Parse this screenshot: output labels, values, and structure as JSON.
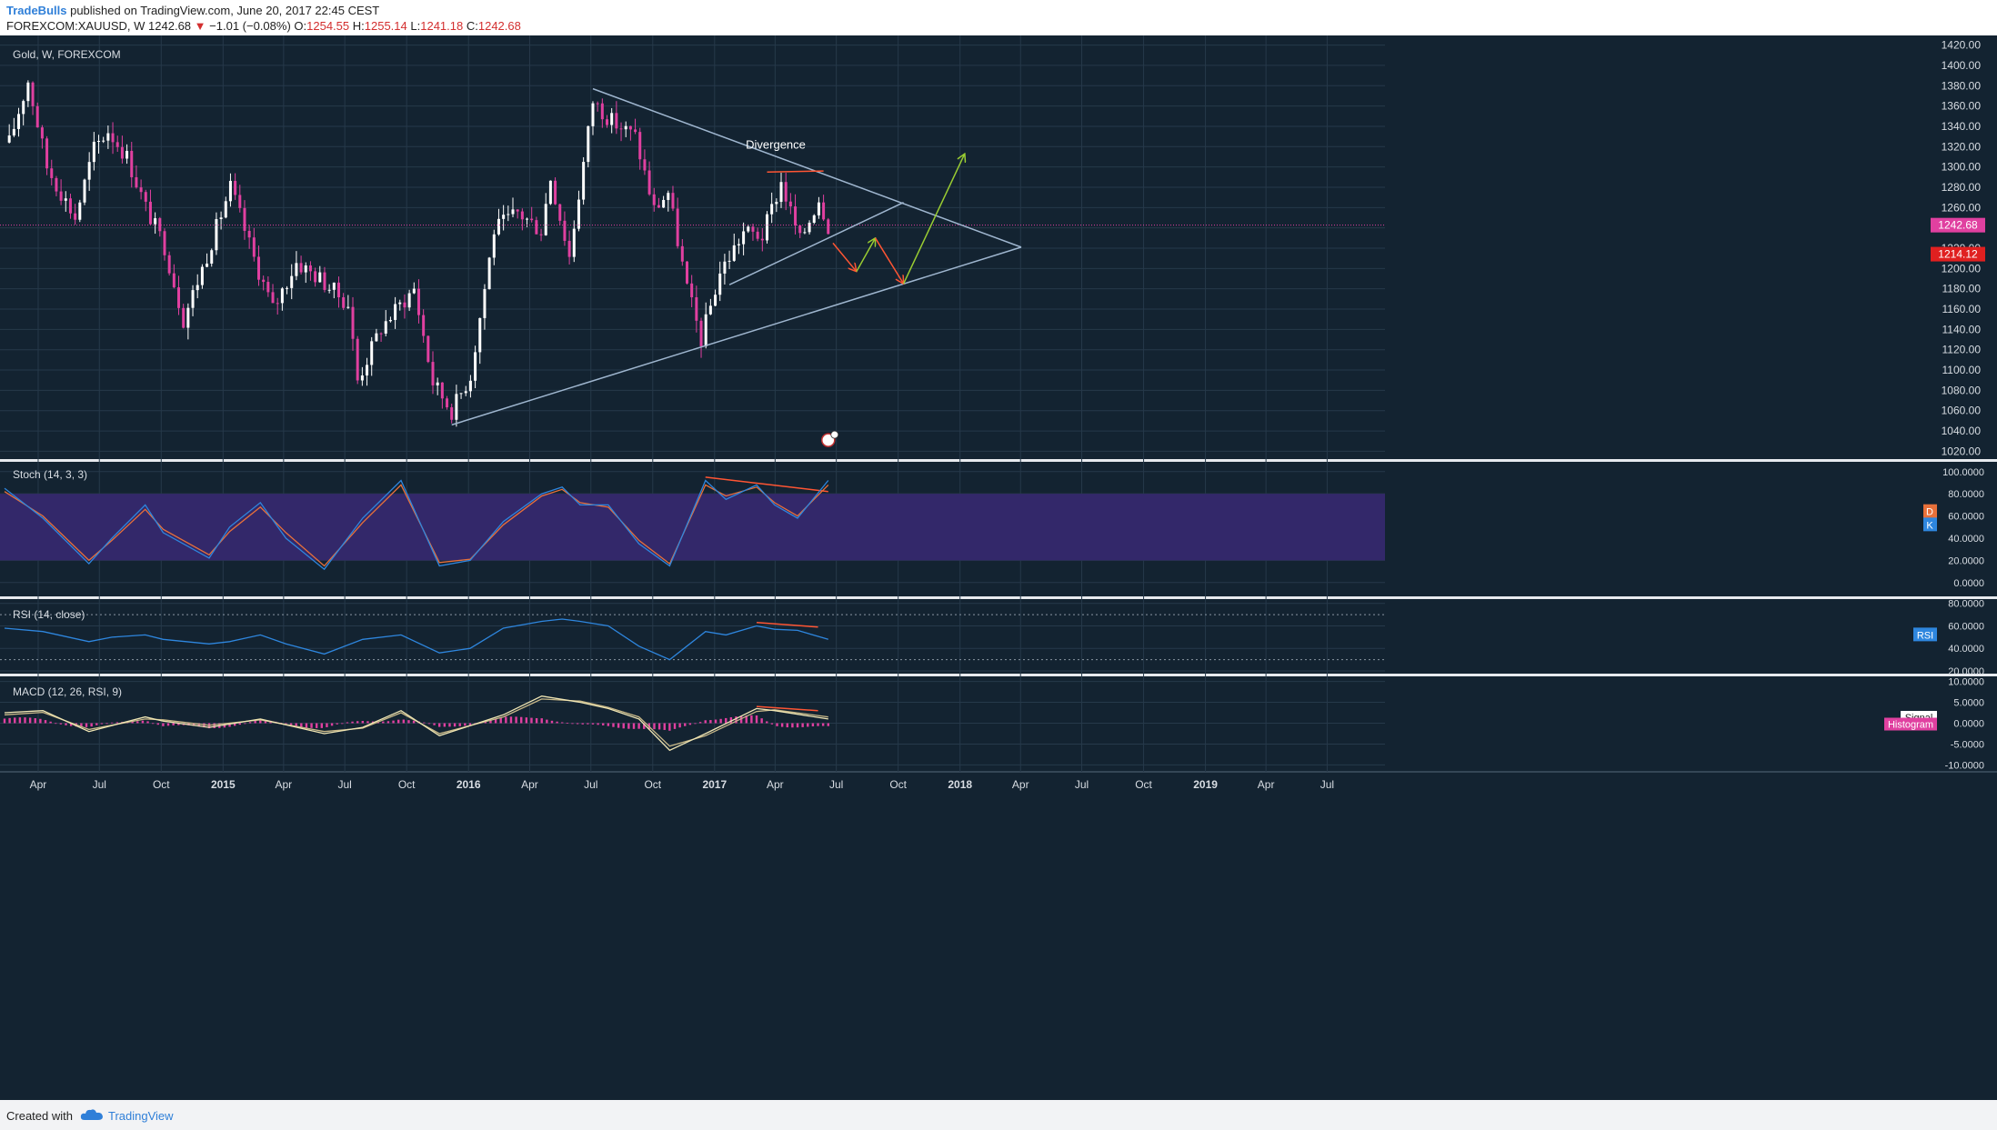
{
  "header": {
    "author": "TradeBulls",
    "published": "published on TradingView.com, June 20, 2017 22:45 CEST",
    "symbol": "FOREXCOM:XAUUSD, W",
    "last": "1242.68",
    "arrow": "▼",
    "change": "−1.01 (−0.08%)",
    "o_label": "O:",
    "o_value": "1254.55",
    "h_label": "H:",
    "h_value": "1255.14",
    "l_label": "L:",
    "l_value": "1241.18",
    "c_label": "C:",
    "c_value": "1242.68"
  },
  "footer": {
    "created": "Created with",
    "brand": "TradingView",
    "logo_icon": "tradingview-cloud-icon"
  },
  "colors": {
    "background": "#132331",
    "grid": "#26394a",
    "up": "#ffffff",
    "down": "#e040a0",
    "trend": "#9fb6cf",
    "annotation_red": "#ff5533",
    "annotation_green": "#9acd32",
    "stoch_k": "#2e86de",
    "stoch_d": "#e8703a",
    "stoch_band": "#33286a",
    "rsi": "#2e86de",
    "macd_line": "#f0e6b4",
    "macd_hist": "#e040a0",
    "price_tag": "#e040a0",
    "level_tag": "#e02020"
  },
  "chart_data": [
    {
      "type": "candlestick",
      "title": "Gold, W, FOREXCOM",
      "timeframe": "W",
      "y_ticks": [
        "1020.00",
        "1040.00",
        "1060.00",
        "1080.00",
        "1100.00",
        "1120.00",
        "1140.00",
        "1160.00",
        "1180.00",
        "1200.00",
        "1220.00",
        "1240.00",
        "1260.00",
        "1280.00",
        "1300.00",
        "1320.00",
        "1340.00",
        "1360.00",
        "1380.00",
        "1400.00",
        "1420.00"
      ],
      "ylim": [
        1015,
        1425
      ],
      "x_ticks": [
        "Apr",
        "Jul",
        "Oct",
        "2015",
        "Apr",
        "Jul",
        "Oct",
        "2016",
        "Apr",
        "Jul",
        "Oct",
        "2017",
        "Apr",
        "Jul",
        "Oct",
        "2018",
        "Apr",
        "Jul",
        "Oct",
        "2019",
        "Apr",
        "Jul"
      ],
      "x_range": [
        "2014-02-10",
        "2019-09-25"
      ],
      "current_price": "1242.68",
      "level_label": "1214.12",
      "annotation": "Divergence",
      "grid": true,
      "close_series": [
        {
          "date": "2014-02-17",
          "close": 1324
        },
        {
          "date": "2014-03-17",
          "close": 1385
        },
        {
          "date": "2014-04-14",
          "close": 1300
        },
        {
          "date": "2014-05-26",
          "close": 1250
        },
        {
          "date": "2014-06-23",
          "close": 1318
        },
        {
          "date": "2014-07-14",
          "close": 1336
        },
        {
          "date": "2014-08-11",
          "close": 1310
        },
        {
          "date": "2014-09-08",
          "close": 1260
        },
        {
          "date": "2014-10-06",
          "close": 1222
        },
        {
          "date": "2014-11-03",
          "close": 1150
        },
        {
          "date": "2014-12-01",
          "close": 1200
        },
        {
          "date": "2015-01-12",
          "close": 1280
        },
        {
          "date": "2015-02-16",
          "close": 1210
        },
        {
          "date": "2015-03-16",
          "close": 1160
        },
        {
          "date": "2015-04-20",
          "close": 1206
        },
        {
          "date": "2015-05-25",
          "close": 1190
        },
        {
          "date": "2015-07-06",
          "close": 1165
        },
        {
          "date": "2015-07-20",
          "close": 1090
        },
        {
          "date": "2015-08-24",
          "close": 1142
        },
        {
          "date": "2015-10-12",
          "close": 1180
        },
        {
          "date": "2015-11-09",
          "close": 1088
        },
        {
          "date": "2015-12-07",
          "close": 1060
        },
        {
          "date": "2016-01-04",
          "close": 1095
        },
        {
          "date": "2016-02-08",
          "close": 1238
        },
        {
          "date": "2016-03-14",
          "close": 1255
        },
        {
          "date": "2016-04-18",
          "close": 1238
        },
        {
          "date": "2016-05-02",
          "close": 1290
        },
        {
          "date": "2016-05-30",
          "close": 1212
        },
        {
          "date": "2016-07-04",
          "close": 1365
        },
        {
          "date": "2016-08-01",
          "close": 1345
        },
        {
          "date": "2016-09-05",
          "close": 1330
        },
        {
          "date": "2016-10-03",
          "close": 1258
        },
        {
          "date": "2016-10-24",
          "close": 1275
        },
        {
          "date": "2016-11-21",
          "close": 1180
        },
        {
          "date": "2016-12-12",
          "close": 1130
        },
        {
          "date": "2017-01-09",
          "close": 1196
        },
        {
          "date": "2017-02-13",
          "close": 1236
        },
        {
          "date": "2017-03-13",
          "close": 1232
        },
        {
          "date": "2017-04-10",
          "close": 1285
        },
        {
          "date": "2017-05-08",
          "close": 1227
        },
        {
          "date": "2017-06-05",
          "close": 1270
        },
        {
          "date": "2017-06-19",
          "close": 1242.68
        }
      ],
      "drawings": [
        {
          "name": "upper-trendline",
          "from": {
            "date": "2016-07-04",
            "price": 1377
          },
          "to": {
            "date": "2018-04-02",
            "price": 1221
          }
        },
        {
          "name": "lower-trendline",
          "from": {
            "date": "2015-12-07",
            "price": 1046
          },
          "to": {
            "date": "2018-04-02",
            "price": 1221
          }
        },
        {
          "name": "inner-trendline",
          "from": {
            "date": "2017-01-23",
            "price": 1184
          },
          "to": {
            "date": "2017-10-09",
            "price": 1265
          }
        },
        {
          "name": "divergence-line",
          "from": {
            "date": "2017-03-20",
            "price": 1295
          },
          "to": {
            "date": "2017-06-12",
            "price": 1296
          }
        },
        {
          "name": "arrow-down-1",
          "color": "red",
          "from": {
            "date": "2017-06-26",
            "price": 1225
          },
          "to": {
            "date": "2017-07-31",
            "price": 1197
          }
        },
        {
          "name": "arrow-up-1",
          "color": "green",
          "from": {
            "date": "2017-07-31",
            "price": 1197
          },
          "to": {
            "date": "2017-08-28",
            "price": 1230
          }
        },
        {
          "name": "arrow-down-2",
          "color": "red",
          "from": {
            "date": "2017-08-28",
            "price": 1230
          },
          "to": {
            "date": "2017-10-09",
            "price": 1185
          }
        },
        {
          "name": "arrow-up-2",
          "color": "green",
          "from": {
            "date": "2017-10-09",
            "price": 1185
          },
          "to": {
            "date": "2018-01-08",
            "price": 1313
          }
        }
      ]
    },
    {
      "type": "line",
      "title": "Stoch (14, 3, 3)",
      "y_ticks": [
        "0.0000",
        "20.0000",
        "40.0000",
        "60.0000",
        "80.0000",
        "100.0000"
      ],
      "ylim": [
        -10,
        108
      ],
      "band": [
        20,
        80
      ],
      "series": [
        {
          "name": "K",
          "values": [
            [
              0,
              85
            ],
            [
              15,
              58
            ],
            [
              33,
              17
            ],
            [
              42,
              40
            ],
            [
              55,
              70
            ],
            [
              62,
              45
            ],
            [
              80,
              22
            ],
            [
              88,
              50
            ],
            [
              100,
              72
            ],
            [
              110,
              40
            ],
            [
              125,
              12
            ],
            [
              140,
              58
            ],
            [
              155,
              92
            ],
            [
              170,
              15
            ],
            [
              182,
              20
            ],
            [
              195,
              55
            ],
            [
              210,
              80
            ],
            [
              218,
              86
            ],
            [
              225,
              70
            ],
            [
              236,
              70
            ],
            [
              248,
              35
            ],
            [
              260,
              15
            ],
            [
              274,
              92
            ],
            [
              282,
              75
            ],
            [
              294,
              88
            ],
            [
              301,
              70
            ],
            [
              310,
              58
            ],
            [
              322,
              92
            ]
          ]
        },
        {
          "name": "D",
          "values": [
            [
              0,
              82
            ],
            [
              15,
              60
            ],
            [
              33,
              20
            ],
            [
              42,
              38
            ],
            [
              55,
              66
            ],
            [
              62,
              48
            ],
            [
              80,
              25
            ],
            [
              88,
              46
            ],
            [
              100,
              68
            ],
            [
              110,
              45
            ],
            [
              125,
              15
            ],
            [
              140,
              54
            ],
            [
              155,
              88
            ],
            [
              170,
              18
            ],
            [
              182,
              21
            ],
            [
              195,
              52
            ],
            [
              210,
              78
            ],
            [
              218,
              84
            ],
            [
              225,
              72
            ],
            [
              236,
              68
            ],
            [
              248,
              38
            ],
            [
              260,
              17
            ],
            [
              274,
              88
            ],
            [
              282,
              78
            ],
            [
              294,
              86
            ],
            [
              301,
              72
            ],
            [
              310,
              60
            ],
            [
              322,
              88
            ]
          ]
        }
      ],
      "legend": [
        "D",
        "K"
      ]
    },
    {
      "type": "line",
      "title": "RSI (14, close)",
      "y_ticks": [
        "20.0000",
        "40.0000",
        "60.0000",
        "80.0000"
      ],
      "ylim": [
        20,
        83
      ],
      "band": [
        30,
        70
      ],
      "series": [
        {
          "name": "RSI",
          "values": [
            [
              0,
              58
            ],
            [
              15,
              55
            ],
            [
              33,
              46
            ],
            [
              42,
              50
            ],
            [
              55,
              52
            ],
            [
              62,
              48
            ],
            [
              80,
              44
            ],
            [
              88,
              46
            ],
            [
              100,
              52
            ],
            [
              110,
              44
            ],
            [
              125,
              35
            ],
            [
              140,
              48
            ],
            [
              155,
              52
            ],
            [
              170,
              36
            ],
            [
              182,
              40
            ],
            [
              195,
              58
            ],
            [
              210,
              64
            ],
            [
              218,
              66
            ],
            [
              225,
              64
            ],
            [
              236,
              60
            ],
            [
              248,
              42
            ],
            [
              260,
              30
            ],
            [
              274,
              55
            ],
            [
              282,
              52
            ],
            [
              294,
              60
            ],
            [
              301,
              57
            ],
            [
              310,
              56
            ],
            [
              322,
              48
            ]
          ]
        }
      ],
      "legend": [
        "RSI"
      ]
    },
    {
      "type": "bar",
      "title": "MACD (12, 26, RSI, 9)",
      "y_ticks": [
        "-10.0000",
        "-5.0000",
        "0.0000",
        "5.0000",
        "10.0000"
      ],
      "ylim": [
        -11,
        11
      ],
      "series": [
        {
          "name": "MACD",
          "values": [
            [
              0,
              2.5
            ],
            [
              15,
              3.0
            ],
            [
              33,
              -2.0
            ],
            [
              55,
              1.5
            ],
            [
              62,
              0.5
            ],
            [
              80,
              -1.0
            ],
            [
              100,
              1.0
            ],
            [
              125,
              -2.5
            ],
            [
              140,
              -1.0
            ],
            [
              155,
              3.0
            ],
            [
              170,
              -3.0
            ],
            [
              195,
              2.0
            ],
            [
              210,
              6.5
            ],
            [
              225,
              5.0
            ],
            [
              236,
              3.5
            ],
            [
              248,
              1.0
            ],
            [
              260,
              -6.5
            ],
            [
              274,
              -2.5
            ],
            [
              294,
              3.5
            ],
            [
              301,
              3.0
            ],
            [
              322,
              1.0
            ]
          ]
        },
        {
          "name": "Signal",
          "values": [
            [
              0,
              2.0
            ],
            [
              15,
              2.6
            ],
            [
              33,
              -1.5
            ],
            [
              55,
              1.0
            ],
            [
              62,
              0.8
            ],
            [
              80,
              -0.5
            ],
            [
              100,
              0.8
            ],
            [
              125,
              -2.0
            ],
            [
              140,
              -1.2
            ],
            [
              155,
              2.5
            ],
            [
              170,
              -2.5
            ],
            [
              195,
              1.5
            ],
            [
              210,
              5.8
            ],
            [
              225,
              5.3
            ],
            [
              236,
              3.8
            ],
            [
              248,
              1.5
            ],
            [
              260,
              -5.5
            ],
            [
              274,
              -3.0
            ],
            [
              294,
              2.8
            ],
            [
              301,
              3.2
            ],
            [
              322,
              1.5
            ]
          ]
        }
      ],
      "legend": [
        "Signal",
        "Histogram"
      ]
    }
  ]
}
